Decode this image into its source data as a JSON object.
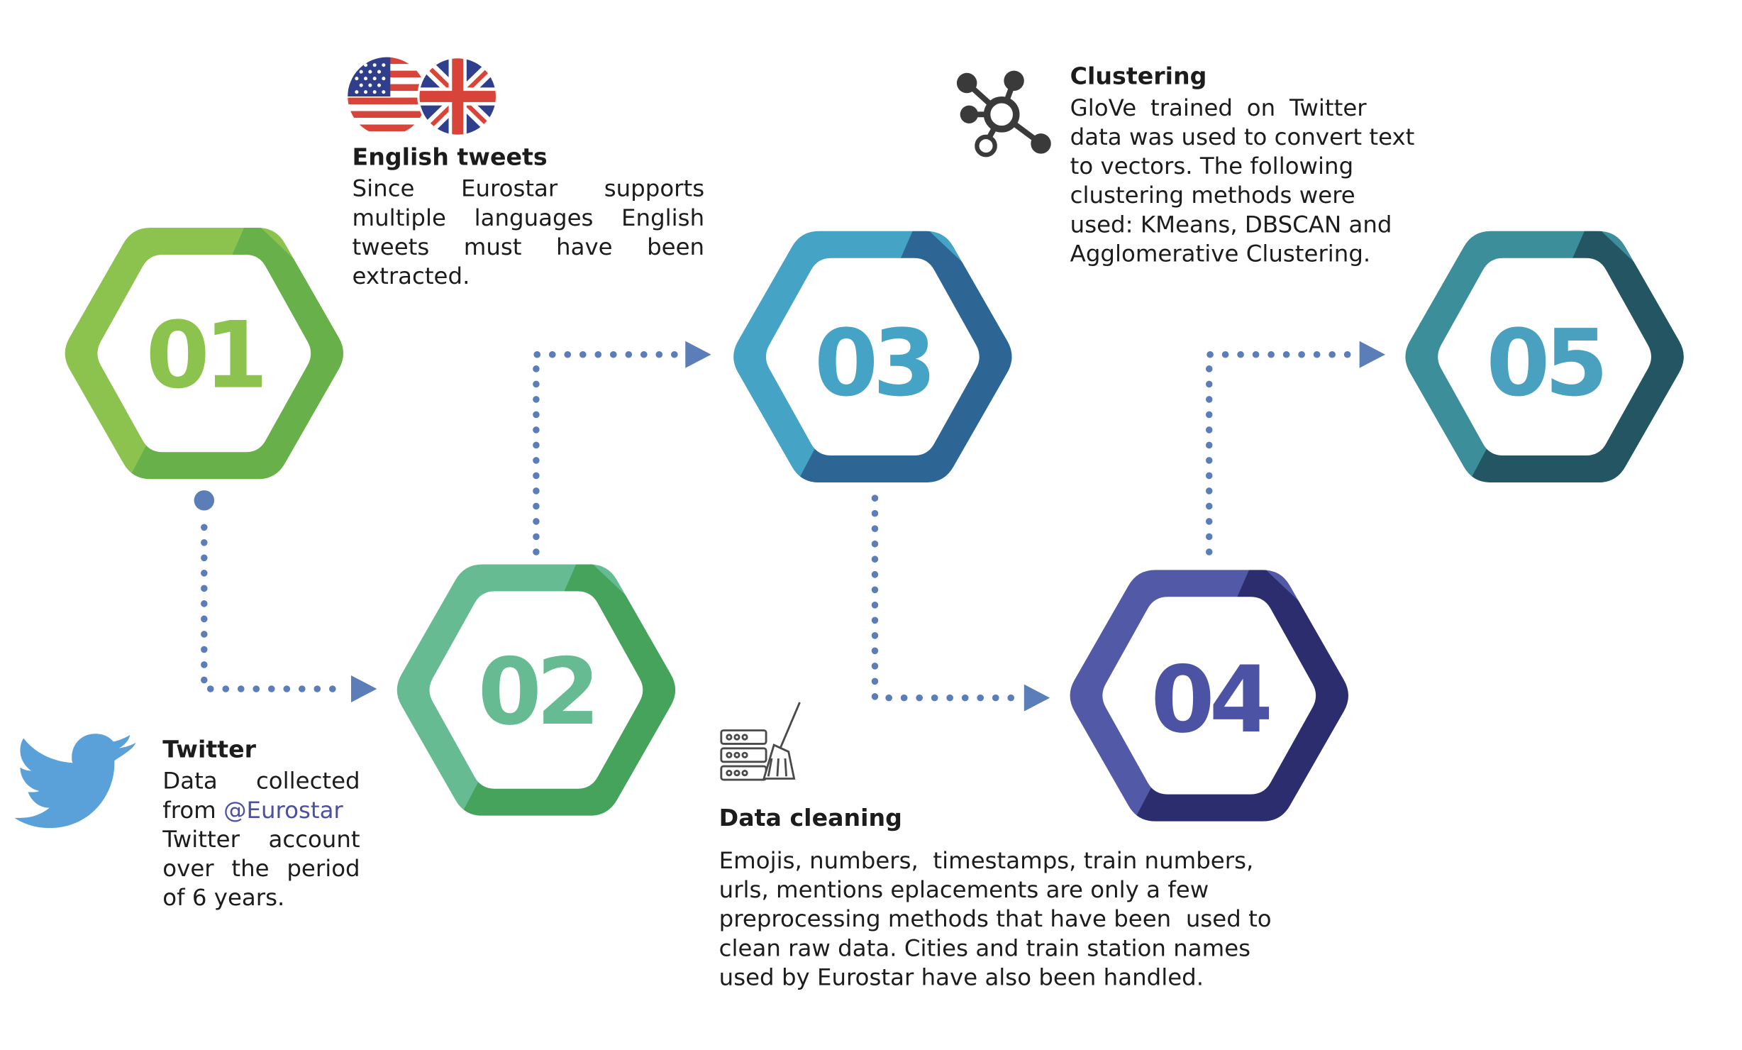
{
  "steps": [
    {
      "number": "01",
      "color_light": "#8cc34f",
      "color_dark": "#68b04a",
      "text_color": "#8cc34f"
    },
    {
      "number": "02",
      "color_light": "#66bb93",
      "color_dark": "#45a35c",
      "text_color": "#66bb93"
    },
    {
      "number": "03",
      "color_light": "#45a3c5",
      "color_dark": "#2d6594",
      "text_color": "#45a3c5"
    },
    {
      "number": "04",
      "color_light": "#5259a7",
      "color_dark": "#2b2d6e",
      "text_color": "#4d53a4"
    },
    {
      "number": "05",
      "color_light": "#3b8e9a",
      "color_dark": "#235563",
      "text_color": "#4aa1bf"
    }
  ],
  "connector_color": "#5b7db8",
  "twitter": {
    "title": "Twitter",
    "lines": [
      "Data collected",
      "from ",
      "Twitter account",
      "over the period",
      "of 6 years."
    ],
    "mention": "@Eurostar",
    "mention_color": "#4b4fa6",
    "icon": "twitter-bird-icon",
    "icon_color": "#5aa1d9"
  },
  "english": {
    "title": "English tweets",
    "lines": [
      "Since Eurostar supports",
      "multiple languages English",
      "tweets must have been",
      "extracted."
    ],
    "icon": "us-uk-flags-icon"
  },
  "cleaning": {
    "title": "Data cleaning",
    "lines": [
      "Emojis, numbers,  timestamps, train numbers,",
      "urls, mentions eplacements are only a few",
      "preprocessing methods that have been  used to",
      "clean raw data. Cities and train station names",
      "used by Eurostar have also been handled."
    ],
    "icon": "server-broom-icon"
  },
  "clustering": {
    "title": "Clustering",
    "lines": [
      "GloVe trained on Twitter",
      "data was used to convert text",
      "to vectors. The following",
      "clustering methods were",
      "used: KMeans, DBSCAN and",
      "Agglomerative Clustering."
    ],
    "icon": "network-nodes-icon"
  }
}
